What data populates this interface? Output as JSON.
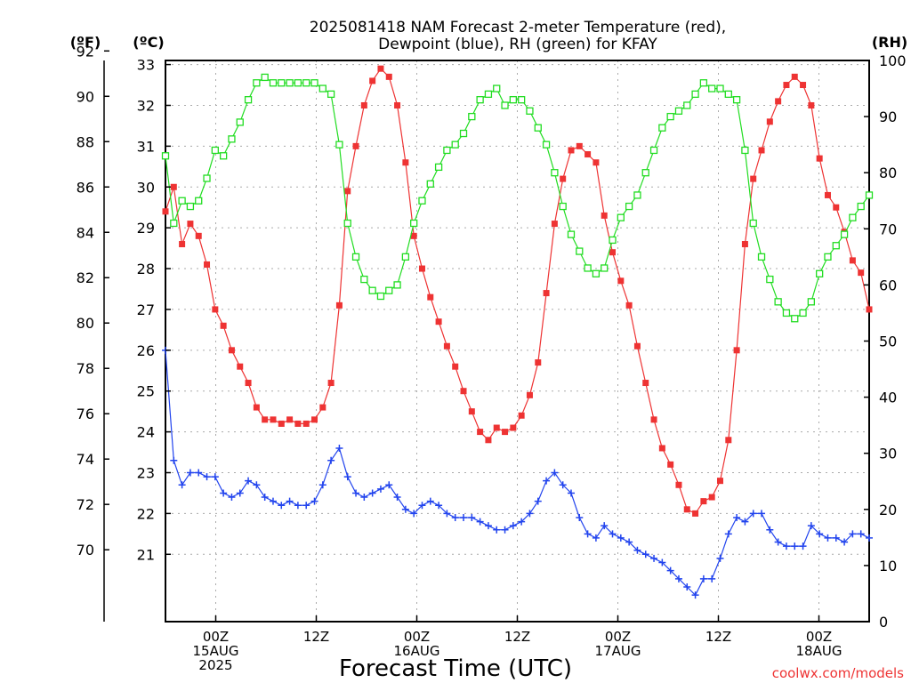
{
  "chart_data": {
    "type": "line",
    "title_line1": "2025081418 NAM Forecast 2-meter Temperature (red),",
    "title_line2": "Dewpoint (blue), RH (green) for KFAY",
    "xlabel": "Forecast Time (UTC)",
    "unit_f": "(ºF)",
    "unit_c": "(ºC)",
    "unit_rh": "(RH)",
    "credit": "coolwx.com/models",
    "x_ticks": [
      {
        "hour": 6,
        "line1": "00Z",
        "line2": "15AUG",
        "line3": "2025"
      },
      {
        "hour": 18,
        "line1": "12Z",
        "line2": "",
        "line3": ""
      },
      {
        "hour": 30,
        "line1": "00Z",
        "line2": "16AUG",
        "line3": ""
      },
      {
        "hour": 42,
        "line1": "12Z",
        "line2": "",
        "line3": ""
      },
      {
        "hour": 54,
        "line1": "00Z",
        "line2": "17AUG",
        "line3": ""
      },
      {
        "hour": 66,
        "line1": "12Z",
        "line2": "",
        "line3": ""
      },
      {
        "hour": 78,
        "line1": "00Z",
        "line2": "18AUG",
        "line3": ""
      },
      {
        "hour": 84,
        "line1": "",
        "line2": "",
        "line3": ""
      }
    ],
    "xlim_hours": [
      0,
      84
    ],
    "c_range": [
      19.35,
      33.1
    ],
    "rh_range": [
      0,
      100
    ],
    "c_ticks": [
      21,
      22,
      23,
      24,
      25,
      26,
      27,
      28,
      29,
      30,
      31,
      32,
      33
    ],
    "f_ticks": [
      70,
      72,
      74,
      76,
      78,
      80,
      82,
      84,
      86,
      88,
      90,
      92
    ],
    "rh_ticks": [
      0,
      10,
      20,
      30,
      40,
      50,
      60,
      70,
      80,
      90,
      100
    ],
    "grid": true,
    "series": [
      {
        "name": "Temperature",
        "color": "#ee3333",
        "marker": "filled-square",
        "values_c": [
          29.4,
          30.0,
          28.6,
          29.1,
          28.8,
          28.1,
          27.0,
          26.6,
          26.0,
          25.6,
          25.2,
          24.6,
          24.3,
          24.3,
          24.2,
          24.3,
          24.2,
          24.2,
          24.3,
          24.6,
          25.2,
          27.1,
          29.9,
          31.0,
          32.0,
          32.6,
          32.9,
          32.7,
          32.0,
          30.6,
          28.8,
          28.0,
          27.3,
          26.7,
          26.1,
          25.6,
          25.0,
          24.5,
          24.0,
          23.8,
          24.1,
          24.0,
          24.1,
          24.4,
          24.9,
          25.7,
          27.4,
          29.1,
          30.2,
          30.9,
          31.0,
          30.8,
          30.6,
          29.3,
          28.4,
          27.7,
          27.1,
          26.1,
          25.2,
          24.3,
          23.6,
          23.2,
          22.7,
          22.1,
          22.0,
          22.3,
          22.4,
          22.8,
          23.8,
          26.0,
          28.6,
          30.2,
          30.9,
          31.6,
          32.1,
          32.5,
          32.7,
          32.5,
          32.0,
          30.7,
          29.8,
          29.5,
          28.9,
          28.2,
          27.9,
          27.0
        ]
      },
      {
        "name": "Dewpoint",
        "color": "#2244ee",
        "marker": "plus",
        "values_c": [
          26.0,
          23.3,
          22.7,
          23.0,
          23.0,
          22.9,
          22.9,
          22.5,
          22.4,
          22.5,
          22.8,
          22.7,
          22.4,
          22.3,
          22.2,
          22.3,
          22.2,
          22.2,
          22.3,
          22.7,
          23.3,
          23.6,
          22.9,
          22.5,
          22.4,
          22.5,
          22.6,
          22.7,
          22.4,
          22.1,
          22.0,
          22.2,
          22.3,
          22.2,
          22.0,
          21.9,
          21.9,
          21.9,
          21.8,
          21.7,
          21.6,
          21.6,
          21.7,
          21.8,
          22.0,
          22.3,
          22.8,
          23.0,
          22.7,
          22.5,
          21.9,
          21.5,
          21.4,
          21.7,
          21.5,
          21.4,
          21.3,
          21.1,
          21.0,
          20.9,
          20.8,
          20.6,
          20.4,
          20.2,
          20.0,
          20.4,
          20.4,
          20.9,
          21.5,
          21.9,
          21.8,
          22.0,
          22.0,
          21.6,
          21.3,
          21.2,
          21.2,
          21.2,
          21.7,
          21.5,
          21.4,
          21.4,
          21.3,
          21.5,
          21.5,
          21.4
        ]
      },
      {
        "name": "RH",
        "color": "#22dd22",
        "marker": "open-square",
        "values_rh": [
          83,
          71,
          75,
          74,
          75,
          79,
          84,
          83,
          86,
          89,
          93,
          96,
          97,
          96,
          96,
          96,
          96,
          96,
          96,
          95,
          94,
          85,
          71,
          65,
          61,
          59,
          58,
          59,
          60,
          65,
          71,
          75,
          78,
          81,
          84,
          85,
          87,
          90,
          93,
          94,
          95,
          92,
          93,
          93,
          91,
          88,
          85,
          80,
          74,
          69,
          66,
          63,
          62,
          63,
          68,
          72,
          74,
          76,
          80,
          84,
          88,
          90,
          91,
          92,
          94,
          96,
          95,
          95,
          94,
          93,
          84,
          71,
          65,
          61,
          57,
          55,
          54,
          55,
          57,
          62,
          65,
          67,
          69,
          72,
          74,
          76
        ]
      }
    ]
  }
}
